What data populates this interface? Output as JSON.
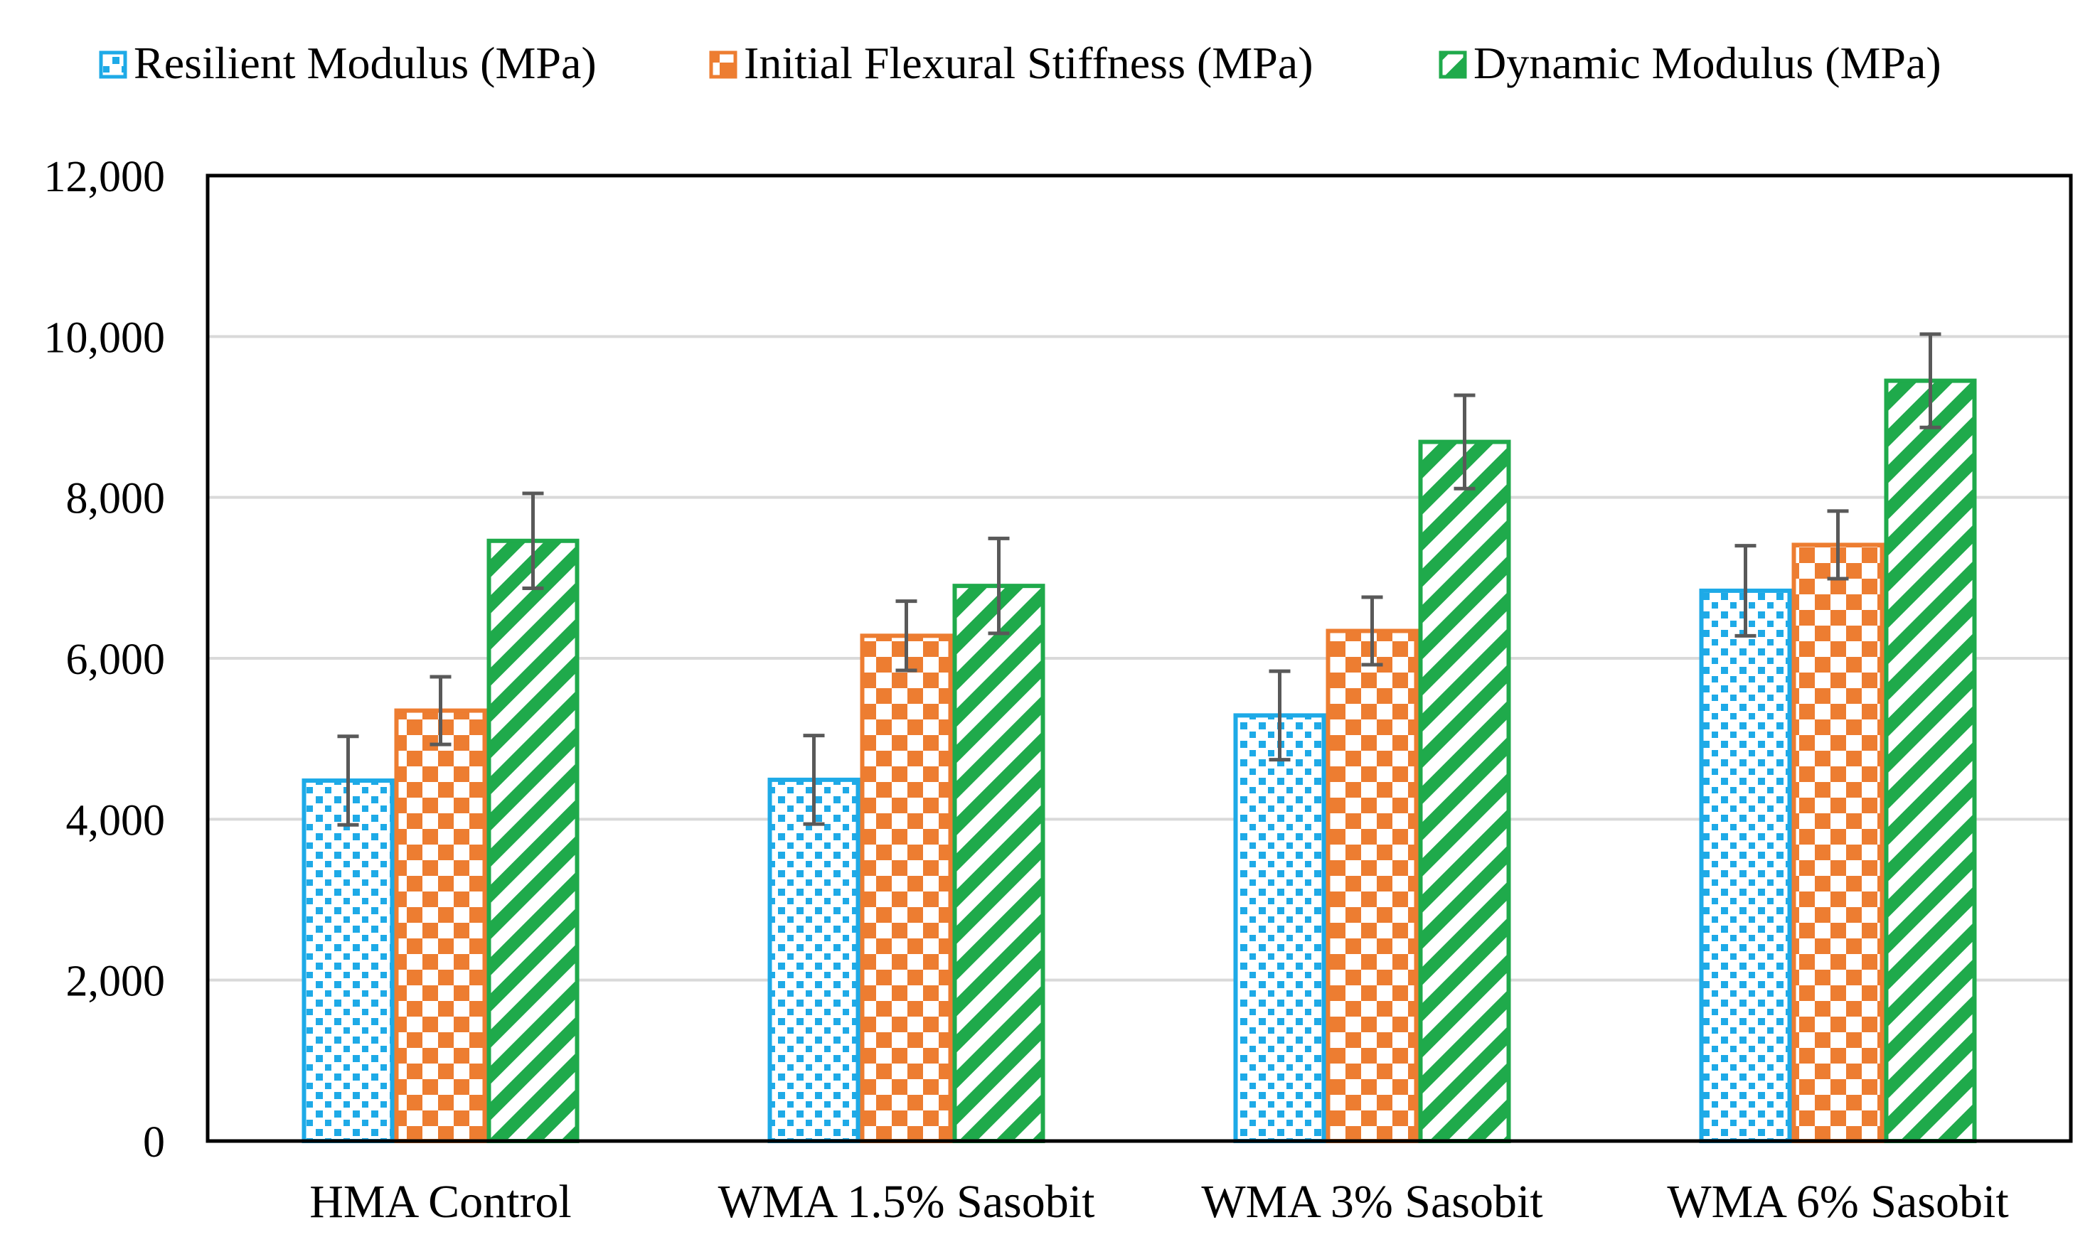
{
  "chart_data": {
    "type": "bar",
    "title": "",
    "xlabel": "",
    "ylabel": "",
    "categories": [
      "HMA Control",
      "WMA 1.5% Sasobit",
      "WMA 3% Sasobit",
      "WMA 6% Sasobit"
    ],
    "series": [
      {
        "name": "Resilient Modulus (MPa)",
        "color": "#1EAAE7",
        "pattern": "dots",
        "values": [
          4480,
          4490,
          5290,
          6840
        ],
        "errors": [
          550,
          550,
          550,
          560
        ]
      },
      {
        "name": "Initial Flexural Stiffness (MPa)",
        "color": "#ED7D31",
        "pattern": "checker",
        "values": [
          5350,
          6280,
          6340,
          7410
        ],
        "errors": [
          420,
          430,
          420,
          420
        ]
      },
      {
        "name": "Dynamic Modulus (MPa)",
        "color": "#1FAA4B",
        "pattern": "diagonal-stripes",
        "values": [
          7460,
          6900,
          8690,
          9450
        ],
        "errors": [
          590,
          590,
          580,
          580
        ]
      }
    ],
    "ylim": [
      0,
      12000
    ],
    "yticks": [
      0,
      2000,
      4000,
      6000,
      8000,
      10000,
      12000
    ],
    "ytick_labels": [
      "0",
      "2,000",
      "4,000",
      "6,000",
      "8,000",
      "10,000",
      "12,000"
    ],
    "grid": true,
    "legend_position": "top-center",
    "error_bar_color": "#595959"
  }
}
